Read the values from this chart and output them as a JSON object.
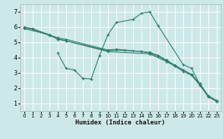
{
  "xlabel": "Humidex (Indice chaleur)",
  "background_color": "#cde8e8",
  "grid_color": "#ffffff",
  "line_color": "#2e7d6e",
  "xlim": [
    -0.5,
    23.5
  ],
  "ylim": [
    0.5,
    7.5
  ],
  "xticks": [
    0,
    1,
    2,
    3,
    4,
    5,
    6,
    7,
    8,
    9,
    10,
    11,
    12,
    13,
    14,
    15,
    16,
    17,
    18,
    19,
    20,
    21,
    22,
    23
  ],
  "yticks": [
    1,
    2,
    3,
    4,
    5,
    6,
    7
  ],
  "lines": [
    {
      "x": [
        0,
        1,
        3,
        4,
        5,
        10,
        11,
        12,
        13,
        14,
        15,
        16,
        17,
        18,
        19,
        20,
        21,
        22,
        23
      ],
      "y": [
        6.0,
        5.9,
        5.5,
        5.3,
        5.2,
        4.5,
        4.55,
        4.5,
        4.45,
        4.4,
        4.35,
        4.15,
        3.85,
        3.5,
        3.2,
        2.9,
        2.3,
        1.5,
        1.2
      ]
    },
    {
      "x": [
        0,
        1,
        3,
        4,
        5,
        10,
        15,
        17,
        18,
        19,
        20,
        21,
        22,
        23
      ],
      "y": [
        5.95,
        5.85,
        5.45,
        5.25,
        5.1,
        4.4,
        4.25,
        3.75,
        3.45,
        3.1,
        2.85,
        2.2,
        1.45,
        1.15
      ]
    },
    {
      "x": [
        4,
        5,
        6,
        7,
        8,
        9,
        10,
        11,
        13,
        14,
        15,
        16,
        19,
        20,
        21,
        22,
        23
      ],
      "y": [
        4.3,
        3.3,
        3.2,
        2.65,
        2.6,
        4.15,
        5.5,
        6.3,
        6.5,
        6.9,
        7.0,
        6.1,
        3.55,
        3.3,
        2.25,
        1.45,
        1.15
      ]
    },
    {
      "x": [
        0,
        3,
        4,
        5,
        10,
        11,
        14,
        15,
        16,
        17,
        18,
        19,
        20,
        21,
        22,
        23
      ],
      "y": [
        5.9,
        5.5,
        5.2,
        5.1,
        4.45,
        4.5,
        4.4,
        4.3,
        4.1,
        3.8,
        3.5,
        3.2,
        2.9,
        2.3,
        1.5,
        1.2
      ]
    }
  ]
}
